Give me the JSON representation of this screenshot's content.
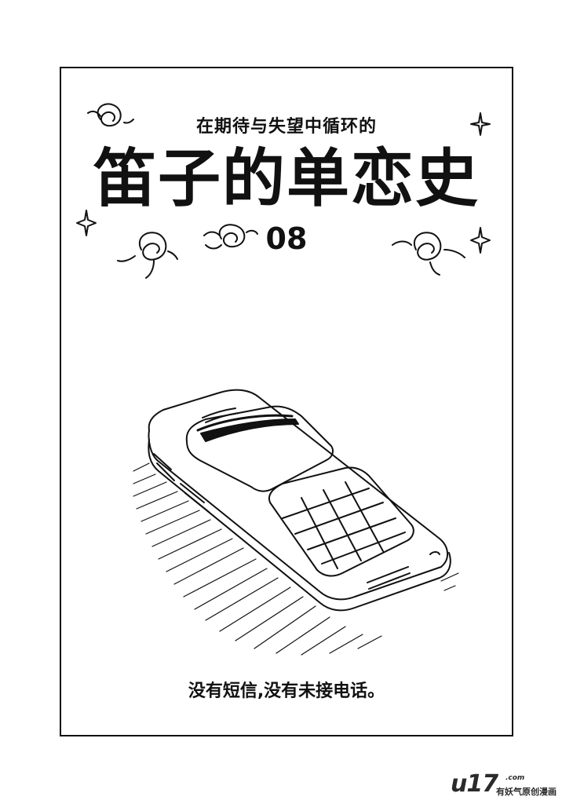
{
  "cover": {
    "subtitle": "在期待与失望中循环的",
    "title": "笛子的单恋史",
    "chapter": "08",
    "caption": "没有短信,没有未接电话。"
  },
  "watermark": {
    "logo": "u17",
    "domain": ".com",
    "slogan": "有妖气原创漫画"
  }
}
